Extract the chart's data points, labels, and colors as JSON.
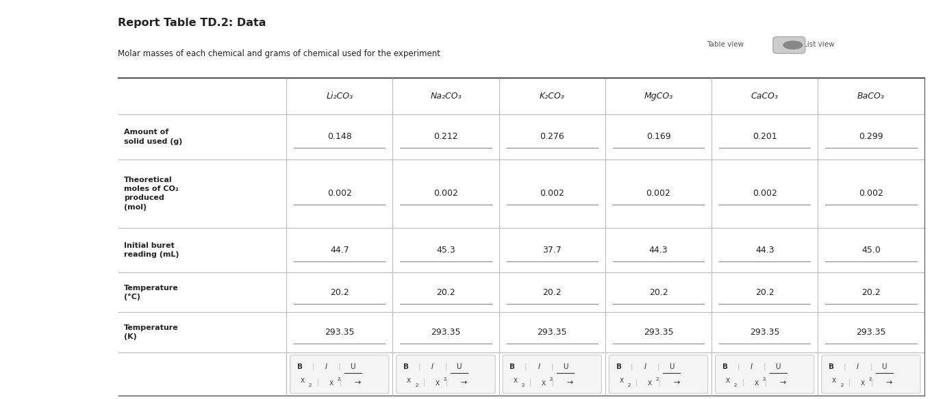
{
  "title": "Report Table TD.2: Data",
  "subtitle": "Molar masses of each chemical and grams of chemical used for the experiment",
  "columns": [
    "",
    "Li₂CO₃",
    "Na₂CO₃",
    "K₂CO₃",
    "MgCO₃",
    "CaCO₃",
    "BaCO₃"
  ],
  "rows": [
    {
      "label": "Amount of\nsolid used (g)",
      "values": [
        "0.148",
        "0.212",
        "0.276",
        "0.169",
        "0.201",
        "0.299"
      ]
    },
    {
      "label": "Theoretical\nmoles of CO₂\nproduced\n(mol)",
      "values": [
        "0.002",
        "0.002",
        "0.002",
        "0.002",
        "0.002",
        "0.002"
      ]
    },
    {
      "label": "Initial buret\nreading (mL)",
      "values": [
        "44.7",
        "45.3",
        "37.7",
        "44.3",
        "44.3",
        "45.0"
      ]
    },
    {
      "label": "Temperature\n(°C)",
      "values": [
        "20.2",
        "20.2",
        "20.2",
        "20.2",
        "20.2",
        "20.2"
      ]
    },
    {
      "label": "Temperature\n(K)",
      "values": [
        "293.35",
        "293.35",
        "293.35",
        "293.35",
        "293.35",
        "293.35"
      ]
    }
  ],
  "bg_color": "#ffffff",
  "text_color": "#222222",
  "header_text_color": "#222222",
  "fig_width": 13.8,
  "fig_height": 5.83
}
